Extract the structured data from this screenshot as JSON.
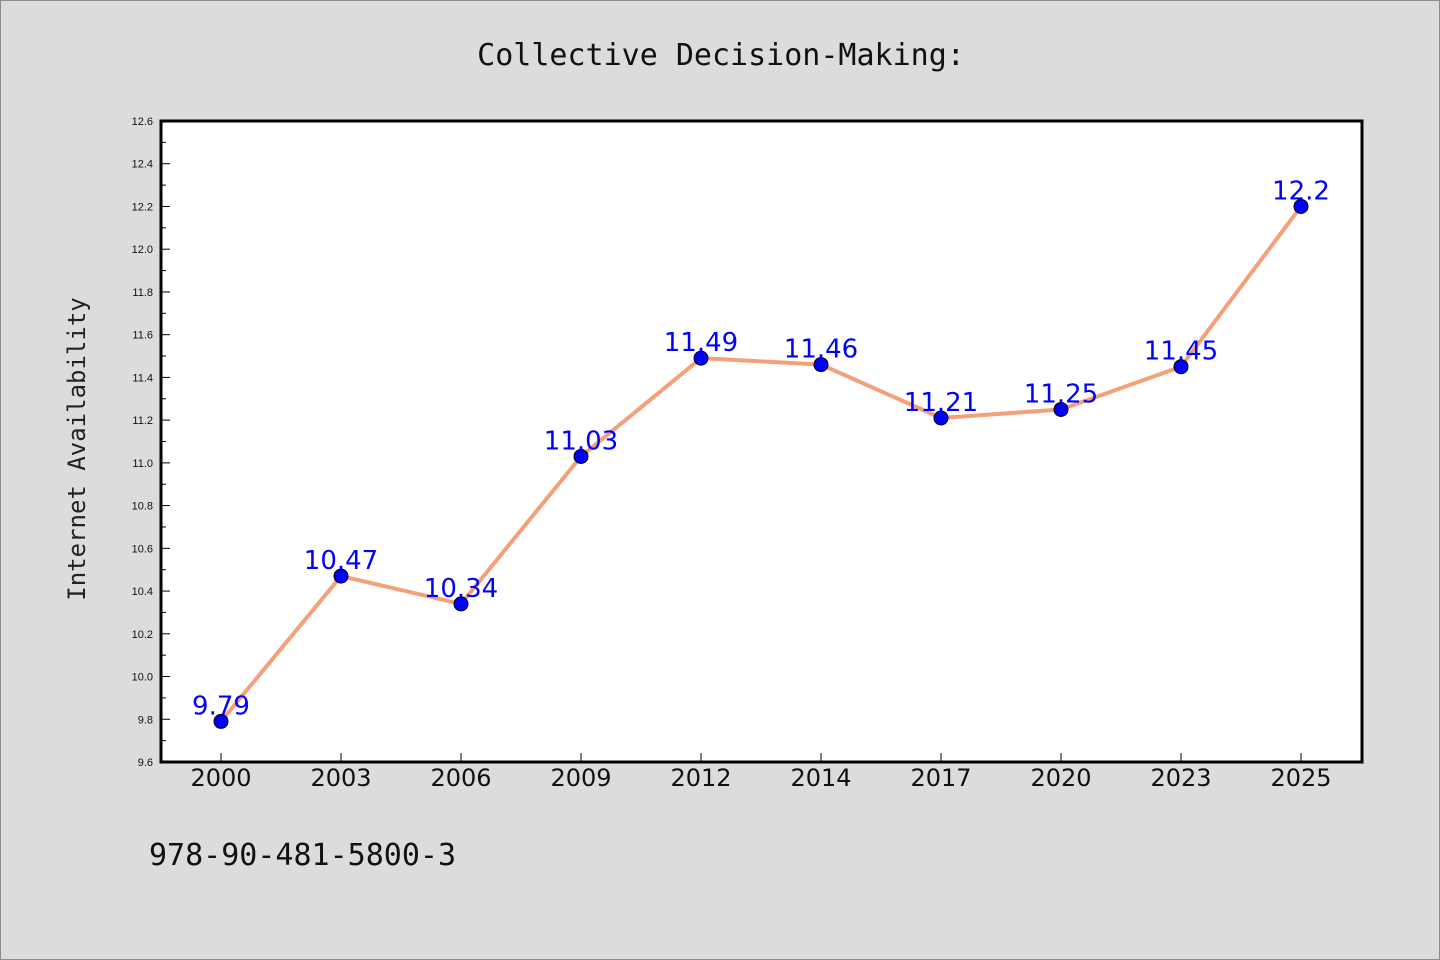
{
  "chart_data": {
    "type": "line",
    "title": "Collective Decision-Making:",
    "xlabel": "",
    "ylabel": "Internet Availability",
    "categories": [
      "2000",
      "2003",
      "2006",
      "2009",
      "2012",
      "2014",
      "2017",
      "2020",
      "2023",
      "2025"
    ],
    "series": [
      {
        "values": [
          9.79,
          10.47,
          10.34,
          11.03,
          11.49,
          11.46,
          11.21,
          11.25,
          11.45,
          12.2
        ],
        "labels": [
          "9.79",
          "10.47",
          "10.34",
          "11.03",
          "11.49",
          "11.46",
          "11.21",
          "11.25",
          "11.45",
          "12.2"
        ],
        "line_color": "#f4a07a",
        "marker_color": "#0000ff"
      }
    ],
    "ylim": [
      9.6,
      12.6
    ],
    "yticks": [
      "9.6",
      "9.8",
      "10.0",
      "10.2",
      "10.4",
      "10.6",
      "10.8",
      "11.0",
      "11.2",
      "11.4",
      "11.6",
      "11.8",
      "12.0",
      "12.2",
      "12.4",
      "12.6"
    ],
    "grid": false,
    "legend": "none"
  },
  "footer": {
    "isbn": "978-90-481-5800-3"
  },
  "colors": {
    "background": "#dcdcdc",
    "plot_background": "#ffffff",
    "line": "#f4a07a",
    "marker": "#0000ff",
    "label": "#0000ff"
  }
}
